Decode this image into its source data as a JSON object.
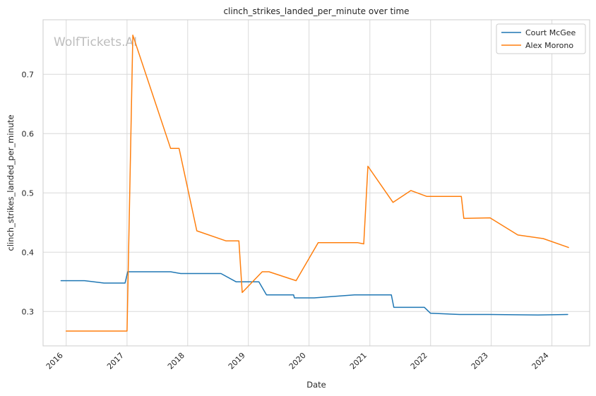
{
  "chart_data": {
    "type": "line",
    "title": "clinch_strikes_landed_per_minute over time",
    "xlabel": "Date",
    "ylabel": "clinch_strikes_landed_per_minute",
    "watermark": "WolfTickets.AI",
    "grid": true,
    "legend_position": "top-right",
    "x_ticks": [
      "2016",
      "2017",
      "2018",
      "2019",
      "2020",
      "2021",
      "2022",
      "2023",
      "2024"
    ],
    "y_ticks": [
      "0.3",
      "0.4",
      "0.5",
      "0.6",
      "0.7"
    ],
    "xlim": [
      "2015-08-15",
      "2024-08-15"
    ],
    "ylim": [
      0.242,
      0.792
    ],
    "series": [
      {
        "name": "Court McGee",
        "color": "#1f77b4",
        "points": [
          [
            "2015-12-01",
            0.352
          ],
          [
            "2016-04-20",
            0.352
          ],
          [
            "2016-08-15",
            0.348
          ],
          [
            "2016-12-20",
            0.348
          ],
          [
            "2017-01-05",
            0.367
          ],
          [
            "2017-09-20",
            0.367
          ],
          [
            "2017-11-20",
            0.364
          ],
          [
            "2018-07-20",
            0.364
          ],
          [
            "2018-10-20",
            0.35
          ],
          [
            "2019-03-05",
            0.35
          ],
          [
            "2019-04-20",
            0.328
          ],
          [
            "2019-09-30",
            0.328
          ],
          [
            "2019-10-05",
            0.323
          ],
          [
            "2020-02-01",
            0.323
          ],
          [
            "2020-09-30",
            0.328
          ],
          [
            "2021-05-10",
            0.328
          ],
          [
            "2021-05-25",
            0.307
          ],
          [
            "2021-11-25",
            0.307
          ],
          [
            "2022-01-01",
            0.297
          ],
          [
            "2022-06-25",
            0.295
          ],
          [
            "2022-12-20",
            0.295
          ],
          [
            "2023-10-10",
            0.294
          ],
          [
            "2024-04-05",
            0.295
          ]
        ]
      },
      {
        "name": "Alex Morono",
        "color": "#ff7f0e",
        "points": [
          [
            "2016-01-01",
            0.267
          ],
          [
            "2017-01-01",
            0.267
          ],
          [
            "2017-02-05",
            0.766
          ],
          [
            "2017-09-20",
            0.575
          ],
          [
            "2017-11-10",
            0.575
          ],
          [
            "2018-02-25",
            0.436
          ],
          [
            "2018-08-20",
            0.419
          ],
          [
            "2018-11-05",
            0.419
          ],
          [
            "2018-11-25",
            0.332
          ],
          [
            "2019-03-25",
            0.367
          ],
          [
            "2019-05-05",
            0.367
          ],
          [
            "2019-10-15",
            0.352
          ],
          [
            "2020-02-25",
            0.416
          ],
          [
            "2020-10-20",
            0.416
          ],
          [
            "2020-11-25",
            0.414
          ],
          [
            "2020-12-20",
            0.545
          ],
          [
            "2021-05-20",
            0.484
          ],
          [
            "2021-09-05",
            0.504
          ],
          [
            "2021-12-10",
            0.494
          ],
          [
            "2022-07-05",
            0.494
          ],
          [
            "2022-07-20",
            0.457
          ],
          [
            "2022-12-25",
            0.458
          ],
          [
            "2023-06-10",
            0.429
          ],
          [
            "2023-11-10",
            0.423
          ],
          [
            "2024-04-10",
            0.408
          ]
        ]
      }
    ]
  }
}
